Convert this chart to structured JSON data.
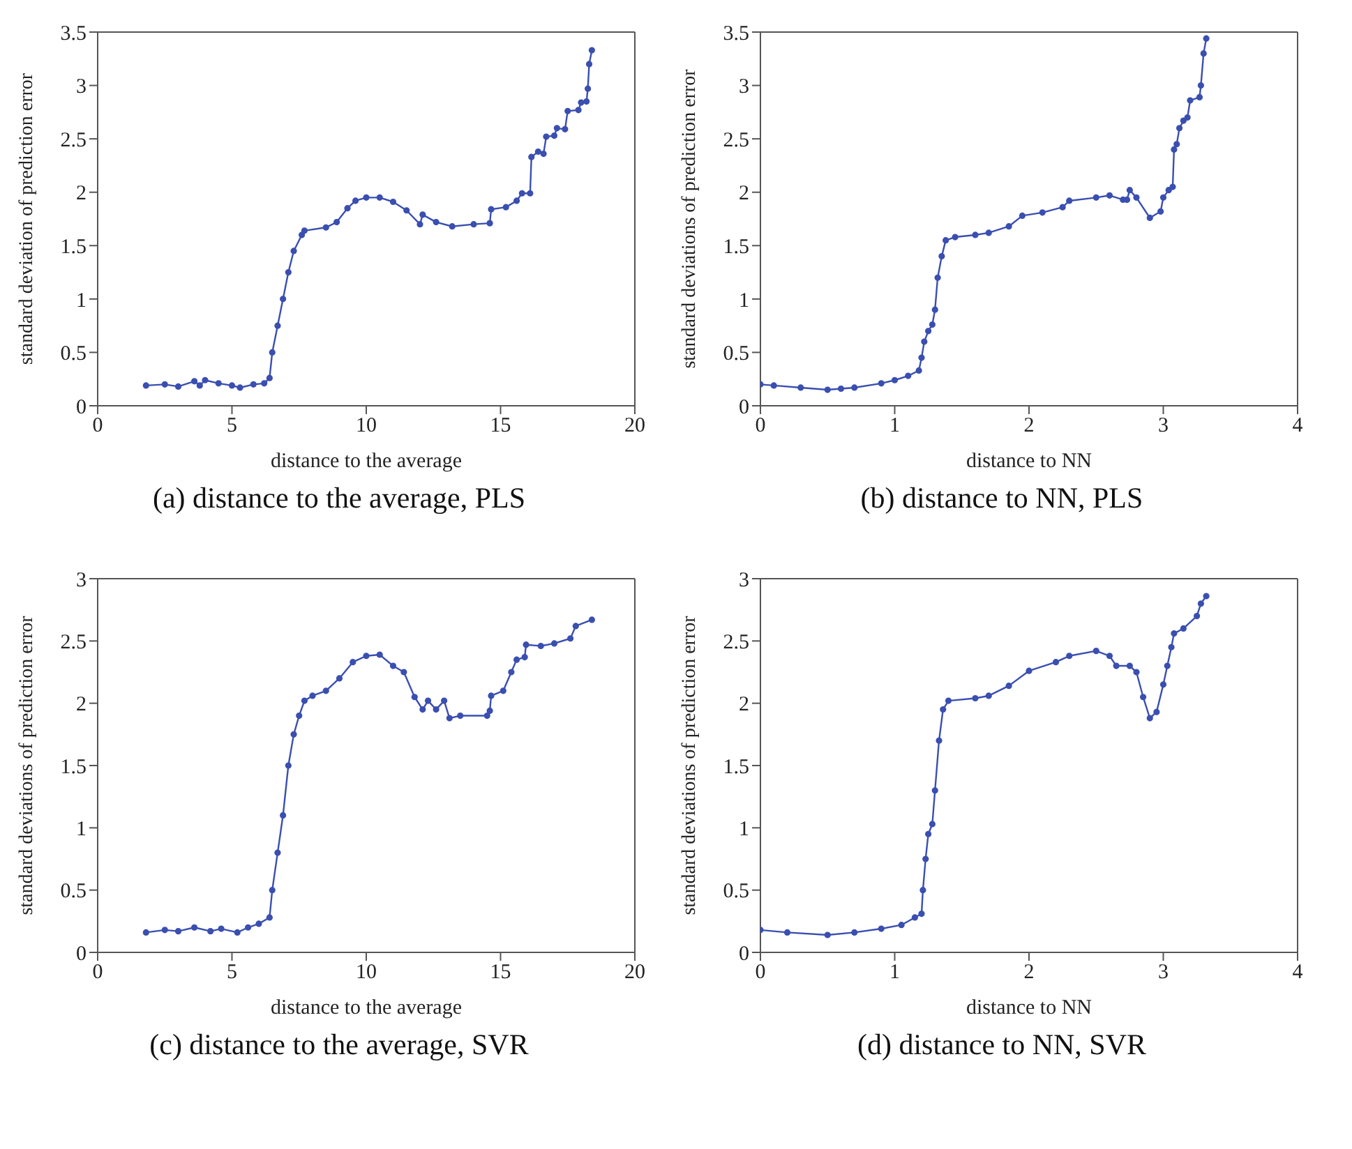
{
  "chart_data": [
    {
      "type": "line",
      "title": "(a) distance to the average, PLS",
      "xlabel": "distance to the average",
      "ylabel": "standard deviation of prediction error",
      "xlim": [
        0,
        20
      ],
      "xticks": [
        0,
        5,
        10,
        15,
        20
      ],
      "ylim": [
        0,
        3.5
      ],
      "yticks": [
        0,
        0.5,
        1,
        1.5,
        2,
        2.5,
        3,
        3.5
      ],
      "marker": "circle",
      "line_style": "solid",
      "series": [
        {
          "color": "#3a4fb0",
          "x": [
            1.8,
            2.5,
            3.0,
            3.6,
            3.8,
            4.0,
            4.5,
            5.0,
            5.3,
            5.8,
            6.2,
            6.4,
            6.5,
            6.7,
            6.9,
            7.1,
            7.3,
            7.6,
            7.7,
            8.5,
            8.9,
            9.3,
            9.6,
            10.0,
            10.5,
            11.0,
            11.5,
            12.0,
            12.1,
            12.6,
            13.2,
            14.0,
            14.6,
            14.65,
            15.2,
            15.6,
            15.8,
            16.1,
            16.15,
            16.4,
            16.6,
            16.7,
            17.0,
            17.1,
            17.4,
            17.5,
            17.9,
            18.0,
            18.2,
            18.25,
            18.3,
            18.4
          ],
          "values": [
            0.19,
            0.2,
            0.18,
            0.23,
            0.19,
            0.24,
            0.21,
            0.19,
            0.17,
            0.2,
            0.21,
            0.26,
            0.5,
            0.75,
            1.0,
            1.25,
            1.45,
            1.6,
            1.64,
            1.67,
            1.72,
            1.85,
            1.92,
            1.95,
            1.95,
            1.91,
            1.83,
            1.7,
            1.79,
            1.72,
            1.68,
            1.7,
            1.71,
            1.84,
            1.86,
            1.92,
            1.99,
            1.99,
            2.33,
            2.38,
            2.36,
            2.52,
            2.53,
            2.6,
            2.59,
            2.76,
            2.77,
            2.84,
            2.85,
            2.97,
            3.2,
            3.33
          ]
        }
      ]
    },
    {
      "type": "line",
      "title": "(b) distance to NN, PLS",
      "xlabel": "distance to NN",
      "ylabel": "standard deviations of prediction error",
      "xlim": [
        0,
        4
      ],
      "xticks": [
        0,
        1,
        2,
        3,
        4
      ],
      "ylim": [
        0,
        3.5
      ],
      "yticks": [
        0,
        0.5,
        1,
        1.5,
        2,
        2.5,
        3,
        3.5
      ],
      "marker": "circle",
      "line_style": "solid",
      "series": [
        {
          "color": "#3a4fb0",
          "x": [
            0,
            0.1,
            0.3,
            0.5,
            0.6,
            0.7,
            0.9,
            1.0,
            1.1,
            1.18,
            1.2,
            1.22,
            1.25,
            1.28,
            1.3,
            1.32,
            1.35,
            1.38,
            1.45,
            1.6,
            1.7,
            1.85,
            1.95,
            2.1,
            2.25,
            2.3,
            2.5,
            2.6,
            2.7,
            2.73,
            2.75,
            2.8,
            2.9,
            2.98,
            3.0,
            3.04,
            3.07,
            3.08,
            3.1,
            3.12,
            3.15,
            3.18,
            3.2,
            3.27,
            3.28,
            3.3,
            3.32
          ],
          "values": [
            0.2,
            0.19,
            0.17,
            0.15,
            0.16,
            0.17,
            0.21,
            0.24,
            0.28,
            0.33,
            0.45,
            0.6,
            0.7,
            0.76,
            0.9,
            1.2,
            1.4,
            1.55,
            1.58,
            1.6,
            1.62,
            1.68,
            1.78,
            1.81,
            1.86,
            1.92,
            1.95,
            1.97,
            1.93,
            1.93,
            2.02,
            1.95,
            1.76,
            1.82,
            1.95,
            2.02,
            2.05,
            2.4,
            2.45,
            2.6,
            2.67,
            2.7,
            2.86,
            2.89,
            3.0,
            3.3,
            3.44
          ]
        }
      ]
    },
    {
      "type": "line",
      "title": "(c) distance to the average, SVR",
      "xlabel": "distance to the average",
      "ylabel": "standard deviations of prediction error",
      "xlim": [
        0,
        20
      ],
      "xticks": [
        0,
        5,
        10,
        15,
        20
      ],
      "ylim": [
        0,
        3
      ],
      "yticks": [
        0,
        0.5,
        1,
        1.5,
        2,
        2.5,
        3
      ],
      "marker": "circle",
      "line_style": "solid",
      "series": [
        {
          "color": "#3a4fb0",
          "x": [
            1.8,
            2.5,
            3.0,
            3.6,
            4.2,
            4.6,
            5.2,
            5.6,
            6.0,
            6.4,
            6.5,
            6.7,
            6.9,
            7.1,
            7.3,
            7.5,
            7.7,
            8.0,
            8.5,
            9.0,
            9.5,
            10.0,
            10.5,
            11.0,
            11.4,
            11.8,
            12.1,
            12.3,
            12.6,
            12.9,
            13.1,
            13.5,
            14.5,
            14.6,
            14.65,
            15.1,
            15.4,
            15.6,
            15.9,
            15.95,
            16.5,
            17.0,
            17.6,
            17.8,
            18.4
          ],
          "values": [
            0.16,
            0.18,
            0.17,
            0.2,
            0.17,
            0.19,
            0.16,
            0.2,
            0.23,
            0.28,
            0.5,
            0.8,
            1.1,
            1.5,
            1.75,
            1.9,
            2.02,
            2.06,
            2.1,
            2.2,
            2.33,
            2.38,
            2.39,
            2.3,
            2.25,
            2.05,
            1.95,
            2.02,
            1.95,
            2.02,
            1.88,
            1.9,
            1.9,
            1.94,
            2.06,
            2.1,
            2.25,
            2.35,
            2.37,
            2.47,
            2.46,
            2.48,
            2.52,
            2.62,
            2.67
          ]
        }
      ]
    },
    {
      "type": "line",
      "title": "(d) distance to NN, SVR",
      "xlabel": "distance to NN",
      "ylabel": "standard deviations of prediction error",
      "xlim": [
        0,
        4
      ],
      "xticks": [
        0,
        1,
        2,
        3,
        4
      ],
      "ylim": [
        0,
        3
      ],
      "yticks": [
        0,
        0.5,
        1,
        1.5,
        2,
        2.5,
        3
      ],
      "marker": "circle",
      "line_style": "solid",
      "series": [
        {
          "color": "#3a4fb0",
          "x": [
            0,
            0.2,
            0.5,
            0.7,
            0.9,
            1.05,
            1.15,
            1.2,
            1.21,
            1.23,
            1.25,
            1.28,
            1.3,
            1.33,
            1.36,
            1.4,
            1.6,
            1.7,
            1.85,
            2.0,
            2.2,
            2.3,
            2.5,
            2.6,
            2.65,
            2.75,
            2.8,
            2.85,
            2.9,
            2.95,
            3.0,
            3.03,
            3.06,
            3.08,
            3.15,
            3.25,
            3.28,
            3.32
          ],
          "values": [
            0.18,
            0.16,
            0.14,
            0.16,
            0.19,
            0.22,
            0.28,
            0.31,
            0.5,
            0.75,
            0.95,
            1.03,
            1.3,
            1.7,
            1.95,
            2.02,
            2.04,
            2.06,
            2.14,
            2.26,
            2.33,
            2.38,
            2.42,
            2.38,
            2.3,
            2.3,
            2.25,
            2.05,
            1.88,
            1.93,
            2.15,
            2.3,
            2.45,
            2.56,
            2.6,
            2.7,
            2.8,
            2.86
          ]
        }
      ]
    }
  ]
}
